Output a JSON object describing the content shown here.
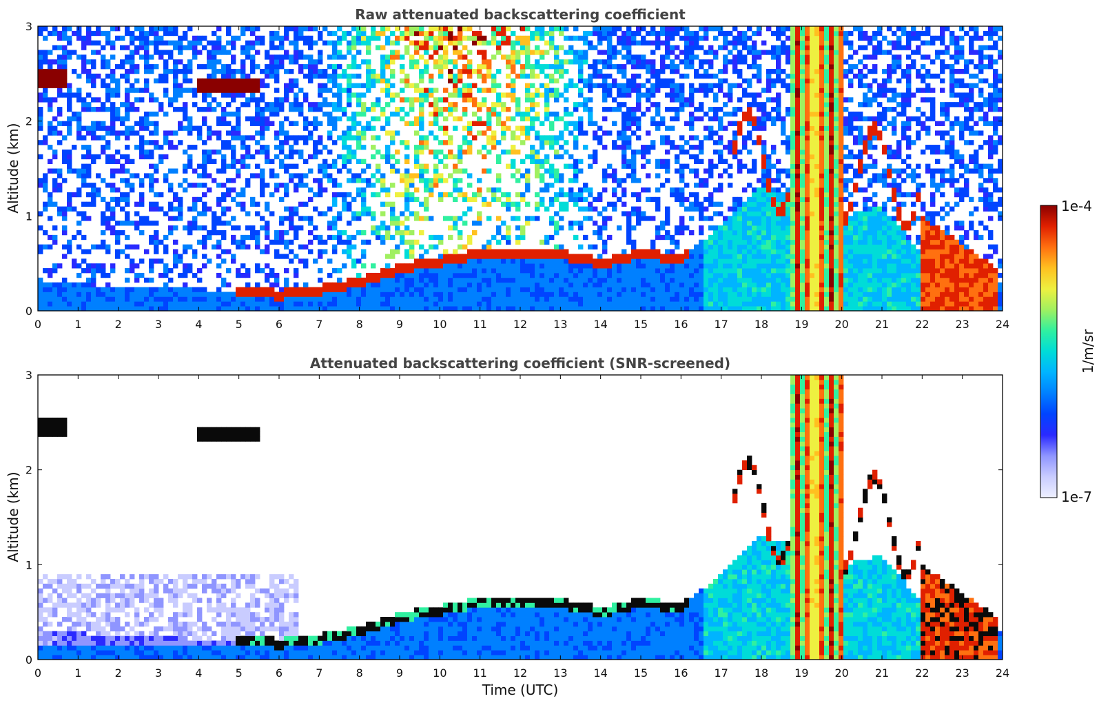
{
  "colors": {
    "colormap": [
      "#eef0ff",
      "#c9ccff",
      "#8f95ff",
      "#2a2aff",
      "#0044ff",
      "#0080ff",
      "#00b4ff",
      "#00dcd8",
      "#30f0a0",
      "#a0f060",
      "#eef040",
      "#ffc020",
      "#ff7010",
      "#e02000",
      "#8a0000"
    ],
    "noise_blue": "#1638f0",
    "boundary": "#0a0a0a"
  },
  "chart_data": [
    {
      "type": "heatmap",
      "title": "Raw attenuated backscattering coefficient",
      "xlabel": "",
      "ylabel": "Altitude (km)",
      "xlim": [
        0,
        24
      ],
      "ylim": [
        0,
        3
      ],
      "xticks": [
        "0",
        "1",
        "2",
        "3",
        "4",
        "5",
        "6",
        "7",
        "8",
        "9",
        "10",
        "11",
        "12",
        "13",
        "14",
        "15",
        "16",
        "17",
        "18",
        "19",
        "20",
        "21",
        "22",
        "23",
        "24"
      ],
      "yticks": [
        "0",
        "1",
        "2",
        "3"
      ],
      "layers": [
        {
          "name": "cloud 2.4 km (early)",
          "t_start": 0.0,
          "t_end": 0.7,
          "alt": 2.45,
          "level": 1.0
        },
        {
          "name": "cloud 2.4 km (4-5.5 UTC)",
          "t_start": 4.0,
          "t_end": 5.5,
          "alt": 2.38,
          "level": 1.0
        },
        {
          "name": "boundary layer top",
          "points": [
            [
              5,
              0.2
            ],
            [
              6,
              0.17
            ],
            [
              7,
              0.22
            ],
            [
              8,
              0.3
            ],
            [
              9,
              0.45
            ],
            [
              10,
              0.52
            ],
            [
              11,
              0.6
            ],
            [
              12,
              0.62
            ],
            [
              12.7,
              0.62
            ]
          ],
          "level": 1.0
        },
        {
          "name": "broken cloud 13-16 UTC",
          "points": [
            [
              13.3,
              0.6
            ],
            [
              14,
              0.5
            ],
            [
              14.5,
              0.6
            ],
            [
              15,
              0.6
            ],
            [
              16,
              0.55
            ]
          ],
          "level": 0.95
        },
        {
          "name": "convective plumes",
          "t_start": 18.7,
          "t_end": 20.0,
          "alt_max": 3.0,
          "level": 0.7
        },
        {
          "name": "low cloud 22-24 UTC",
          "t_start": 22.0,
          "t_end": 23.9,
          "alt_max": 1.0,
          "level": 0.9
        }
      ]
    },
    {
      "type": "heatmap",
      "title": "Attenuated backscattering coefficient (SNR-screened)",
      "xlabel": "Time (UTC)",
      "ylabel": "Altitude (km)",
      "xlim": [
        0,
        24
      ],
      "ylim": [
        0,
        3
      ],
      "xticks": [
        "0",
        "1",
        "2",
        "3",
        "4",
        "5",
        "6",
        "7",
        "8",
        "9",
        "10",
        "11",
        "12",
        "13",
        "14",
        "15",
        "16",
        "17",
        "18",
        "19",
        "20",
        "21",
        "22",
        "23",
        "24"
      ],
      "yticks": [
        "0",
        "1",
        "2",
        "3"
      ],
      "screened": true
    }
  ],
  "colorbar": {
    "label": "1/m/sr",
    "max_label": "1e-4",
    "min_label": "1e-7",
    "range": [
      1e-07,
      0.0001
    ],
    "scale": "log"
  }
}
